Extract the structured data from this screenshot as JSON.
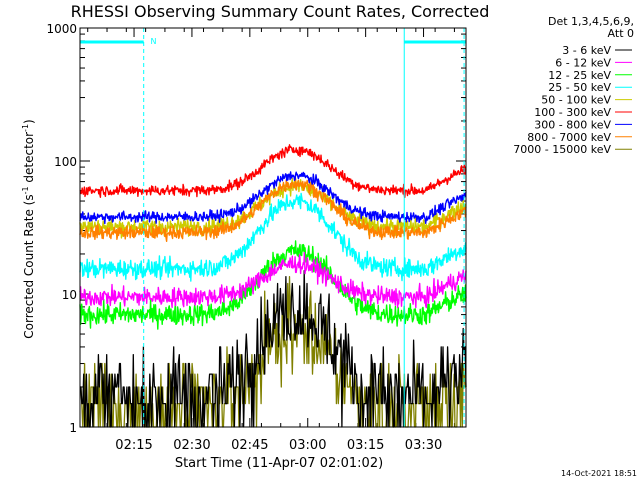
{
  "chart_data": {
    "type": "line",
    "title": "RHESSI Observing Summary Count Rates, Corrected",
    "xlabel": "Start Time (11-Apr-07 02:01:02)",
    "ylabel_prefix": "Corrected Count Rate (s",
    "ylabel_exp": "-1",
    "ylabel_mid": " detector",
    "ylabel_suffix": ")",
    "yscale": "log",
    "ylim": [
      1,
      1000
    ],
    "xlim_minutes": [
      0,
      100
    ],
    "x_start_time": "02:01:02",
    "x_ticks": [
      {
        "label": "02:15",
        "minutes": 14
      },
      {
        "label": "02:30",
        "minutes": 29
      },
      {
        "label": "02:45",
        "minutes": 44
      },
      {
        "label": "03:00",
        "minutes": 59
      },
      {
        "label": "03:15",
        "minutes": 74
      },
      {
        "label": "03:30",
        "minutes": 89
      }
    ],
    "y_ticks": [
      {
        "label": "1",
        "value": 1
      },
      {
        "label": "10",
        "value": 10
      },
      {
        "label": "100",
        "value": 100
      },
      {
        "label": "1000",
        "value": 1000
      }
    ],
    "legend_header": [
      "Det 1,3,4,5,6,9,",
      "Att 0"
    ],
    "x_peak_minutes": 56,
    "series": [
      {
        "name": "3 - 6 keV",
        "color": "#000000",
        "base": 1.8,
        "peak": 8,
        "noise": 0.3
      },
      {
        "name": "6 - 12 keV",
        "color": "#ff00ff",
        "base": 9.5,
        "peak": 17,
        "noise": 0.07
      },
      {
        "name": "12 - 25 keV",
        "color": "#00ff00",
        "base": 7.0,
        "peak": 21,
        "noise": 0.08
      },
      {
        "name": "25 - 50 keV",
        "color": "#00ffff",
        "base": 15.5,
        "peak": 50,
        "noise": 0.07
      },
      {
        "name": "50 - 100 keV",
        "color": "#cccc00",
        "base": 32,
        "peak": 65,
        "noise": 0.06
      },
      {
        "name": "100 - 300 keV",
        "color": "#ff0000",
        "base": 60,
        "peak": 122,
        "noise": 0.04
      },
      {
        "name": "300 - 800 keV",
        "color": "#0000ff",
        "base": 38,
        "peak": 78,
        "noise": 0.04
      },
      {
        "name": "800 - 7000 keV",
        "color": "#ff8000",
        "base": 29,
        "peak": 68,
        "noise": 0.05
      },
      {
        "name": "7000 - 15000 keV",
        "color": "#808000",
        "base": 1.5,
        "peak": 5.5,
        "noise": 0.3
      }
    ],
    "annotations": {
      "marker_color": "#00ffff",
      "night_label": "N",
      "night_bars": [
        {
          "start_min": 0,
          "end_min": 16.5
        },
        {
          "start_min": 84,
          "end_min": 100
        }
      ],
      "dashed_lines_min": [
        16.5,
        99.5
      ],
      "solid_lines_min": [
        0,
        84
      ],
      "night_label_min": 17.5
    }
  },
  "footer": {
    "timestamp": "14-Oct-2021 18:51"
  }
}
